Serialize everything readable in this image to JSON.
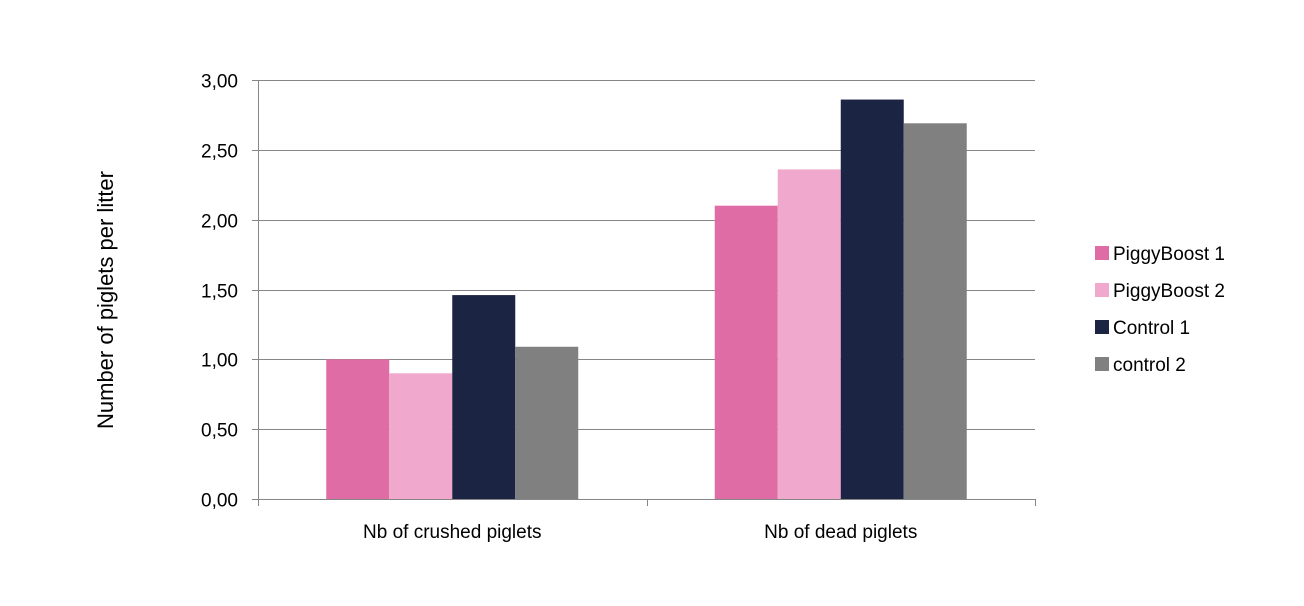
{
  "chart_data": {
    "type": "bar",
    "title": "",
    "xlabel": "",
    "ylabel": "Number of piglets per litter",
    "categories": [
      "Nb of crushed piglets",
      "Nb of dead piglets"
    ],
    "series": [
      {
        "name": "PiggyBoost 1",
        "color": "#e06ca5",
        "values": [
          1.0,
          2.1
        ]
      },
      {
        "name": "PiggyBoost 2",
        "color": "#f0a8cc",
        "values": [
          0.9,
          2.36
        ]
      },
      {
        "name": "Control 1",
        "color": "#1c2444",
        "values": [
          1.46,
          2.86
        ]
      },
      {
        "name": "control 2",
        "color": "#808080",
        "values": [
          1.09,
          2.69
        ]
      }
    ],
    "ylim": [
      0,
      3
    ],
    "yticks": [
      "0,00",
      "0,50",
      "1,00",
      "1,50",
      "2,00",
      "2,50",
      "3,00"
    ],
    "ytick_values": [
      0,
      0.5,
      1,
      1.5,
      2,
      2.5,
      3
    ],
    "grid": true,
    "legend_position": "right"
  }
}
